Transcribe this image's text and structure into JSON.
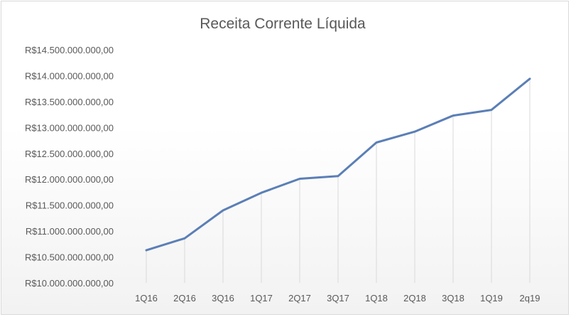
{
  "chart_data": {
    "type": "line",
    "title": "Receita Corrente Líquida",
    "categories": [
      "1Q16",
      "2Q16",
      "3Q16",
      "1Q17",
      "2Q17",
      "3Q17",
      "1Q18",
      "2Q18",
      "3Q18",
      "1Q19",
      "2q19"
    ],
    "series": [
      {
        "values": [
          10630000000,
          10860000000,
          11400000000,
          11740000000,
          12010000000,
          12060000000,
          12710000000,
          12920000000,
          13230000000,
          13340000000,
          13940000000
        ]
      }
    ],
    "yticks": [
      "R$10.000.000.000,00",
      "R$10.500.000.000,00",
      "R$11.000.000.000,00",
      "R$11.500.000.000,00",
      "R$12.000.000.000,00",
      "R$12.500.000.000,00",
      "R$13.000.000.000,00",
      "R$13.500.000.000,00",
      "R$14.000.000.000,00",
      "R$14.500.000.000,00"
    ],
    "ylim": [
      10000000000,
      14500000000
    ],
    "grid": "vertical drop lines",
    "colors": {
      "line": "#5b7fb6",
      "dropline": "#d9d9d9",
      "text": "#595959"
    }
  }
}
